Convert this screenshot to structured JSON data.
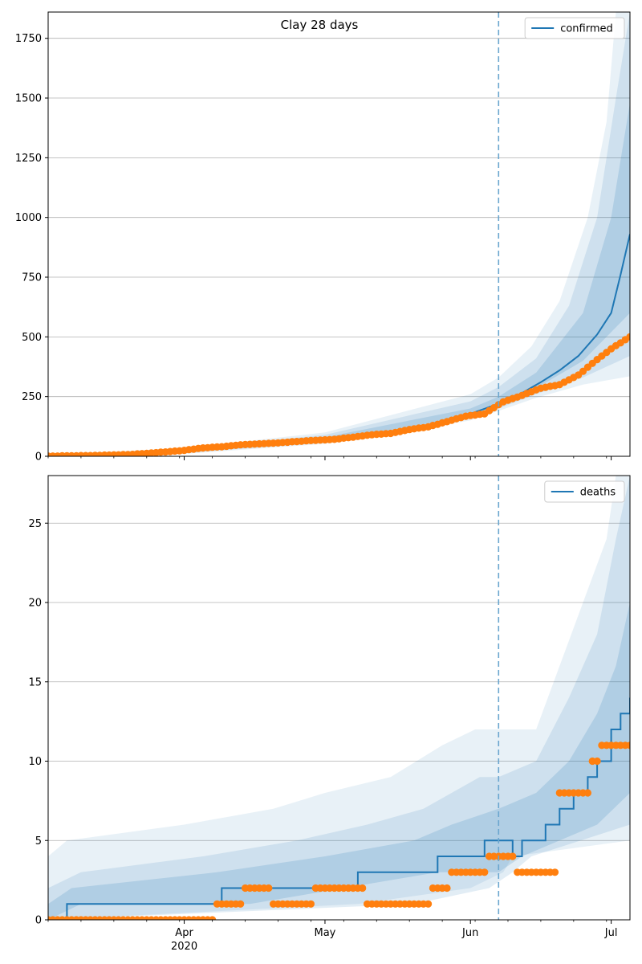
{
  "figure": {
    "title": "Clay 28 days"
  },
  "chart_data": [
    {
      "type": "line",
      "panel": "top",
      "title": "Clay 28 days",
      "xlabel": "",
      "ylabel": "",
      "x_type": "date",
      "xlim": [
        "2020-03-03",
        "2020-07-05"
      ],
      "ylim": [
        0,
        1860
      ],
      "y_ticks": [
        0,
        250,
        500,
        750,
        1000,
        1250,
        1500,
        1750
      ],
      "x_ticks": [
        {
          "date": "2020-04-01",
          "label": "Apr",
          "sublabel": "2020"
        },
        {
          "date": "2020-05-01",
          "label": "May",
          "sublabel": ""
        },
        {
          "date": "2020-06-01",
          "label": "Jun",
          "sublabel": ""
        },
        {
          "date": "2020-07-01",
          "label": "Jul",
          "sublabel": ""
        }
      ],
      "grid": "y",
      "legend": {
        "position": "top-right",
        "entries": [
          "confirmed"
        ]
      },
      "forecast_start": "2020-06-07",
      "colors": {
        "forecast": "#1f77b4",
        "observed": "#ff7f0e",
        "band": "#1f77b4"
      },
      "forecast": {
        "name": "confirmed",
        "points": [
          [
            "2020-03-03",
            1
          ],
          [
            "2020-03-15",
            3
          ],
          [
            "2020-03-25",
            10
          ],
          [
            "2020-04-01",
            20
          ],
          [
            "2020-04-08",
            35
          ],
          [
            "2020-04-15",
            48
          ],
          [
            "2020-04-22",
            57
          ],
          [
            "2020-05-01",
            70
          ],
          [
            "2020-05-10",
            82
          ],
          [
            "2020-05-20",
            115
          ],
          [
            "2020-06-01",
            178
          ],
          [
            "2020-06-07",
            220
          ],
          [
            "2020-06-12",
            265
          ],
          [
            "2020-06-16",
            310
          ],
          [
            "2020-06-20",
            360
          ],
          [
            "2020-06-24",
            420
          ],
          [
            "2020-06-28",
            510
          ],
          [
            "2020-07-01",
            600
          ],
          [
            "2020-07-03",
            760
          ],
          [
            "2020-07-05",
            930
          ]
        ]
      },
      "bands": [
        {
          "level": "outer",
          "lower": [
            [
              "2020-03-03",
              0
            ],
            [
              "2020-04-01",
              10
            ],
            [
              "2020-05-01",
              52
            ],
            [
              "2020-06-01",
              150
            ],
            [
              "2020-06-07",
              190
            ],
            [
              "2020-06-15",
              245
            ],
            [
              "2020-06-25",
              300
            ],
            [
              "2020-07-05",
              335
            ]
          ],
          "upper": [
            [
              "2020-03-03",
              5
            ],
            [
              "2020-04-01",
              35
            ],
            [
              "2020-05-01",
              100
            ],
            [
              "2020-06-01",
              260
            ],
            [
              "2020-06-07",
              330
            ],
            [
              "2020-06-14",
              460
            ],
            [
              "2020-06-20",
              650
            ],
            [
              "2020-06-26",
              1000
            ],
            [
              "2020-06-30",
              1400
            ],
            [
              "2020-07-02",
              1860
            ],
            [
              "2020-07-05",
              1860
            ]
          ]
        },
        {
          "level": "middle",
          "lower": [
            [
              "2020-03-03",
              0
            ],
            [
              "2020-04-01",
              13
            ],
            [
              "2020-05-01",
              58
            ],
            [
              "2020-06-01",
              160
            ],
            [
              "2020-06-07",
              200
            ],
            [
              "2020-06-15",
              260
            ],
            [
              "2020-06-25",
              330
            ],
            [
              "2020-07-05",
              420
            ]
          ],
          "upper": [
            [
              "2020-03-03",
              3
            ],
            [
              "2020-04-01",
              30
            ],
            [
              "2020-05-01",
              90
            ],
            [
              "2020-06-01",
              230
            ],
            [
              "2020-06-07",
              290
            ],
            [
              "2020-06-15",
              410
            ],
            [
              "2020-06-22",
              630
            ],
            [
              "2020-06-28",
              1000
            ],
            [
              "2020-07-02",
              1500
            ],
            [
              "2020-07-05",
              1860
            ]
          ]
        },
        {
          "level": "inner",
          "lower": [
            [
              "2020-03-03",
              0
            ],
            [
              "2020-04-01",
              16
            ],
            [
              "2020-05-01",
              63
            ],
            [
              "2020-06-01",
              168
            ],
            [
              "2020-06-07",
              210
            ],
            [
              "2020-06-15",
              285
            ],
            [
              "2020-06-25",
              400
            ],
            [
              "2020-07-05",
              600
            ]
          ],
          "upper": [
            [
              "2020-03-03",
              2
            ],
            [
              "2020-04-01",
              25
            ],
            [
              "2020-05-01",
              80
            ],
            [
              "2020-06-01",
              200
            ],
            [
              "2020-06-07",
              250
            ],
            [
              "2020-06-15",
              350
            ],
            [
              "2020-06-25",
              600
            ],
            [
              "2020-07-01",
              1000
            ],
            [
              "2020-07-05",
              1480
            ]
          ]
        }
      ],
      "observed": {
        "name": "observed",
        "points": [
          [
            "2020-03-03",
            1
          ],
          [
            "2020-03-08",
            2
          ],
          [
            "2020-03-12",
            3
          ],
          [
            "2020-03-16",
            5
          ],
          [
            "2020-03-20",
            7
          ],
          [
            "2020-03-24",
            12
          ],
          [
            "2020-03-28",
            18
          ],
          [
            "2020-04-01",
            25
          ],
          [
            "2020-04-05",
            35
          ],
          [
            "2020-04-09",
            40
          ],
          [
            "2020-04-13",
            48
          ],
          [
            "2020-04-17",
            52
          ],
          [
            "2020-04-21",
            56
          ],
          [
            "2020-04-25",
            62
          ],
          [
            "2020-04-29",
            67
          ],
          [
            "2020-05-03",
            71
          ],
          [
            "2020-05-07",
            80
          ],
          [
            "2020-05-11",
            90
          ],
          [
            "2020-05-15",
            96
          ],
          [
            "2020-05-19",
            112
          ],
          [
            "2020-05-23",
            123
          ],
          [
            "2020-05-27",
            145
          ],
          [
            "2020-05-31",
            168
          ],
          [
            "2020-06-04",
            178
          ],
          [
            "2020-06-08",
            228
          ],
          [
            "2020-06-12",
            255
          ],
          [
            "2020-06-16",
            285
          ],
          [
            "2020-06-20",
            300
          ],
          [
            "2020-06-24",
            340
          ],
          [
            "2020-06-28",
            405
          ],
          [
            "2020-07-01",
            450
          ],
          [
            "2020-07-05",
            500
          ]
        ]
      }
    },
    {
      "type": "line",
      "panel": "bottom",
      "title": "",
      "xlabel": "",
      "ylabel": "",
      "x_type": "date",
      "xlim": [
        "2020-03-03",
        "2020-07-05"
      ],
      "ylim": [
        0,
        28
      ],
      "y_ticks": [
        0,
        5,
        10,
        15,
        20,
        25
      ],
      "x_ticks": [
        {
          "date": "2020-04-01",
          "label": "Apr",
          "sublabel": "2020"
        },
        {
          "date": "2020-05-01",
          "label": "May",
          "sublabel": ""
        },
        {
          "date": "2020-06-01",
          "label": "Jun",
          "sublabel": ""
        },
        {
          "date": "2020-07-01",
          "label": "Jul",
          "sublabel": ""
        }
      ],
      "grid": "y",
      "legend": {
        "position": "top-right",
        "entries": [
          "deaths"
        ]
      },
      "forecast_start": "2020-06-07",
      "colors": {
        "forecast": "#1f77b4",
        "observed": "#ff7f0e",
        "band": "#1f77b4"
      },
      "forecast": {
        "name": "deaths",
        "step": true,
        "points": [
          [
            "2020-03-03",
            0
          ],
          [
            "2020-03-07",
            1
          ],
          [
            "2020-04-09",
            2
          ],
          [
            "2020-05-08",
            3
          ],
          [
            "2020-05-25",
            4
          ],
          [
            "2020-06-04",
            5
          ],
          [
            "2020-06-10",
            4
          ],
          [
            "2020-06-12",
            5
          ],
          [
            "2020-06-17",
            6
          ],
          [
            "2020-06-20",
            7
          ],
          [
            "2020-06-23",
            8
          ],
          [
            "2020-06-26",
            9
          ],
          [
            "2020-06-28",
            10
          ],
          [
            "2020-07-01",
            12
          ],
          [
            "2020-07-03",
            13
          ],
          [
            "2020-07-05",
            14
          ]
        ]
      },
      "bands": [
        {
          "level": "outer",
          "lower": [
            [
              "2020-03-03",
              0
            ],
            [
              "2020-05-08",
              1
            ],
            [
              "2020-06-01",
              2
            ],
            [
              "2020-06-08",
              3
            ],
            [
              "2020-06-10",
              4
            ],
            [
              "2020-07-05",
              5
            ]
          ],
          "upper": [
            [
              "2020-03-03",
              4
            ],
            [
              "2020-03-07",
              5
            ],
            [
              "2020-04-01",
              6
            ],
            [
              "2020-04-20",
              7
            ],
            [
              "2020-05-01",
              8
            ],
            [
              "2020-05-15",
              9
            ],
            [
              "2020-05-26",
              11
            ],
            [
              "2020-06-02",
              12
            ],
            [
              "2020-06-07",
              12
            ],
            [
              "2020-06-15",
              12
            ],
            [
              "2020-06-20",
              16
            ],
            [
              "2020-06-25",
              20
            ],
            [
              "2020-06-30",
              24
            ],
            [
              "2020-07-02",
              28
            ],
            [
              "2020-07-05",
              28
            ]
          ]
        },
        {
          "level": "middle",
          "lower": [
            [
              "2020-03-03",
              0
            ],
            [
              "2020-05-20",
              1
            ],
            [
              "2020-06-05",
              2
            ],
            [
              "2020-06-10",
              3
            ],
            [
              "2020-06-14",
              4
            ],
            [
              "2020-07-05",
              6
            ]
          ],
          "upper": [
            [
              "2020-03-03",
              2
            ],
            [
              "2020-03-10",
              3
            ],
            [
              "2020-04-05",
              4
            ],
            [
              "2020-04-25",
              5
            ],
            [
              "2020-05-10",
              6
            ],
            [
              "2020-05-22",
              7
            ],
            [
              "2020-05-28",
              8
            ],
            [
              "2020-06-03",
              9
            ],
            [
              "2020-06-07",
              9
            ],
            [
              "2020-06-15",
              10
            ],
            [
              "2020-06-22",
              14
            ],
            [
              "2020-06-28",
              18
            ],
            [
              "2020-07-02",
              24
            ],
            [
              "2020-07-05",
              28
            ]
          ]
        },
        {
          "level": "inner",
          "lower": [
            [
              "2020-03-03",
              0
            ],
            [
              "2020-03-10",
              1
            ],
            [
              "2020-04-15",
              1
            ],
            [
              "2020-05-05",
              2
            ],
            [
              "2020-05-25",
              3
            ],
            [
              "2020-06-07",
              3
            ],
            [
              "2020-06-12",
              4
            ],
            [
              "2020-06-20",
              5
            ],
            [
              "2020-06-28",
              6
            ],
            [
              "2020-07-05",
              8
            ]
          ],
          "upper": [
            [
              "2020-03-03",
              1
            ],
            [
              "2020-03-08",
              2
            ],
            [
              "2020-04-08",
              3
            ],
            [
              "2020-05-01",
              4
            ],
            [
              "2020-05-20",
              5
            ],
            [
              "2020-05-28",
              6
            ],
            [
              "2020-06-07",
              7
            ],
            [
              "2020-06-15",
              8
            ],
            [
              "2020-06-22",
              10
            ],
            [
              "2020-06-28",
              13
            ],
            [
              "2020-07-02",
              16
            ],
            [
              "2020-07-05",
              20
            ]
          ]
        }
      ],
      "observed": {
        "name": "observed",
        "points": [
          [
            "2020-03-03",
            0
          ],
          [
            "2020-04-06",
            0
          ],
          [
            "2020-04-08",
            1
          ],
          [
            "2020-04-13",
            1
          ],
          [
            "2020-04-14",
            2
          ],
          [
            "2020-04-19",
            2
          ],
          [
            "2020-04-20",
            1
          ],
          [
            "2020-04-28",
            1
          ],
          [
            "2020-04-29",
            2
          ],
          [
            "2020-05-08",
            2
          ],
          [
            "2020-05-10",
            1
          ],
          [
            "2020-05-23",
            1
          ],
          [
            "2020-05-24",
            2
          ],
          [
            "2020-05-27",
            2
          ],
          [
            "2020-05-28",
            3
          ],
          [
            "2020-06-04",
            3
          ],
          [
            "2020-06-05",
            4
          ],
          [
            "2020-06-10",
            4
          ],
          [
            "2020-06-11",
            3
          ],
          [
            "2020-06-19",
            3
          ],
          [
            "2020-06-20",
            8
          ],
          [
            "2020-06-26",
            8
          ],
          [
            "2020-06-27",
            10
          ],
          [
            "2020-06-28",
            10
          ],
          [
            "2020-06-29",
            11
          ],
          [
            "2020-07-05",
            11
          ]
        ]
      }
    }
  ]
}
